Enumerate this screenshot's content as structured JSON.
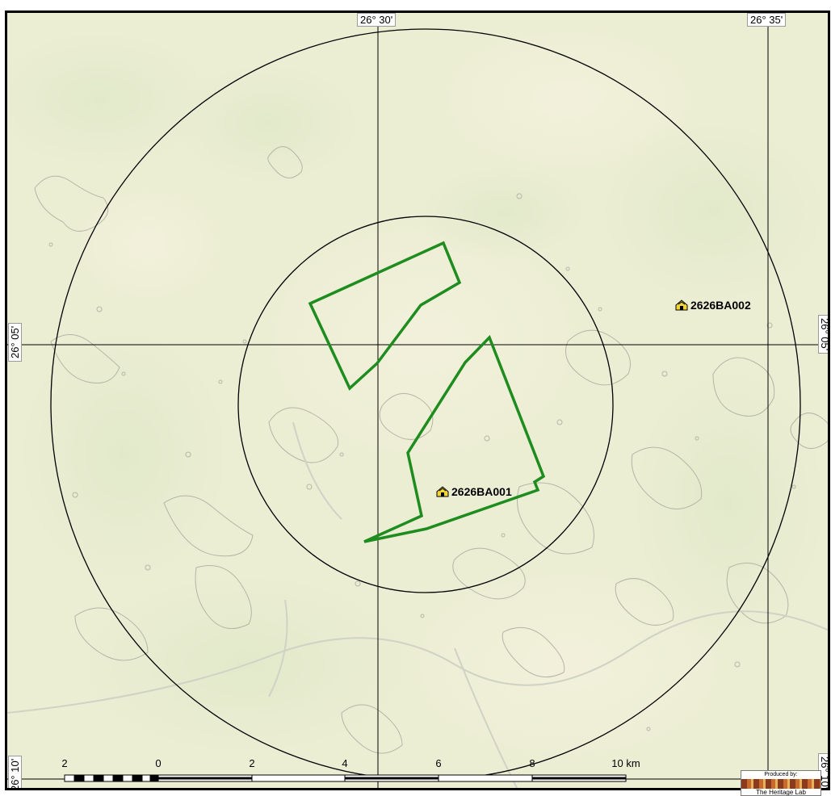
{
  "map": {
    "coordinates": {
      "top_left_lon": "26° 30'",
      "top_right_lon": "26° 35'",
      "left_lat": "26° 05'",
      "right_lat": "26° 05'",
      "bottom_left_lat": "26° 10'",
      "bottom_right_lat": "26° 10'"
    },
    "sites": [
      {
        "id": "2626BA001",
        "icon": "heritage-site-icon"
      },
      {
        "id": "2626BA002",
        "icon": "heritage-site-icon"
      }
    ],
    "scale_bar": {
      "labels": [
        "2",
        "0",
        "2",
        "4",
        "6",
        "8",
        "10 km"
      ]
    },
    "credit": {
      "produced_by": "Produced by:",
      "organisation": "The Heritage Lab"
    },
    "colors": {
      "background": "#eeeed6",
      "boundary": "#1e8c1e",
      "buffer_rings": "#000000",
      "contours": "#a9ad9e",
      "icon_fill": "#f2d43a"
    }
  }
}
